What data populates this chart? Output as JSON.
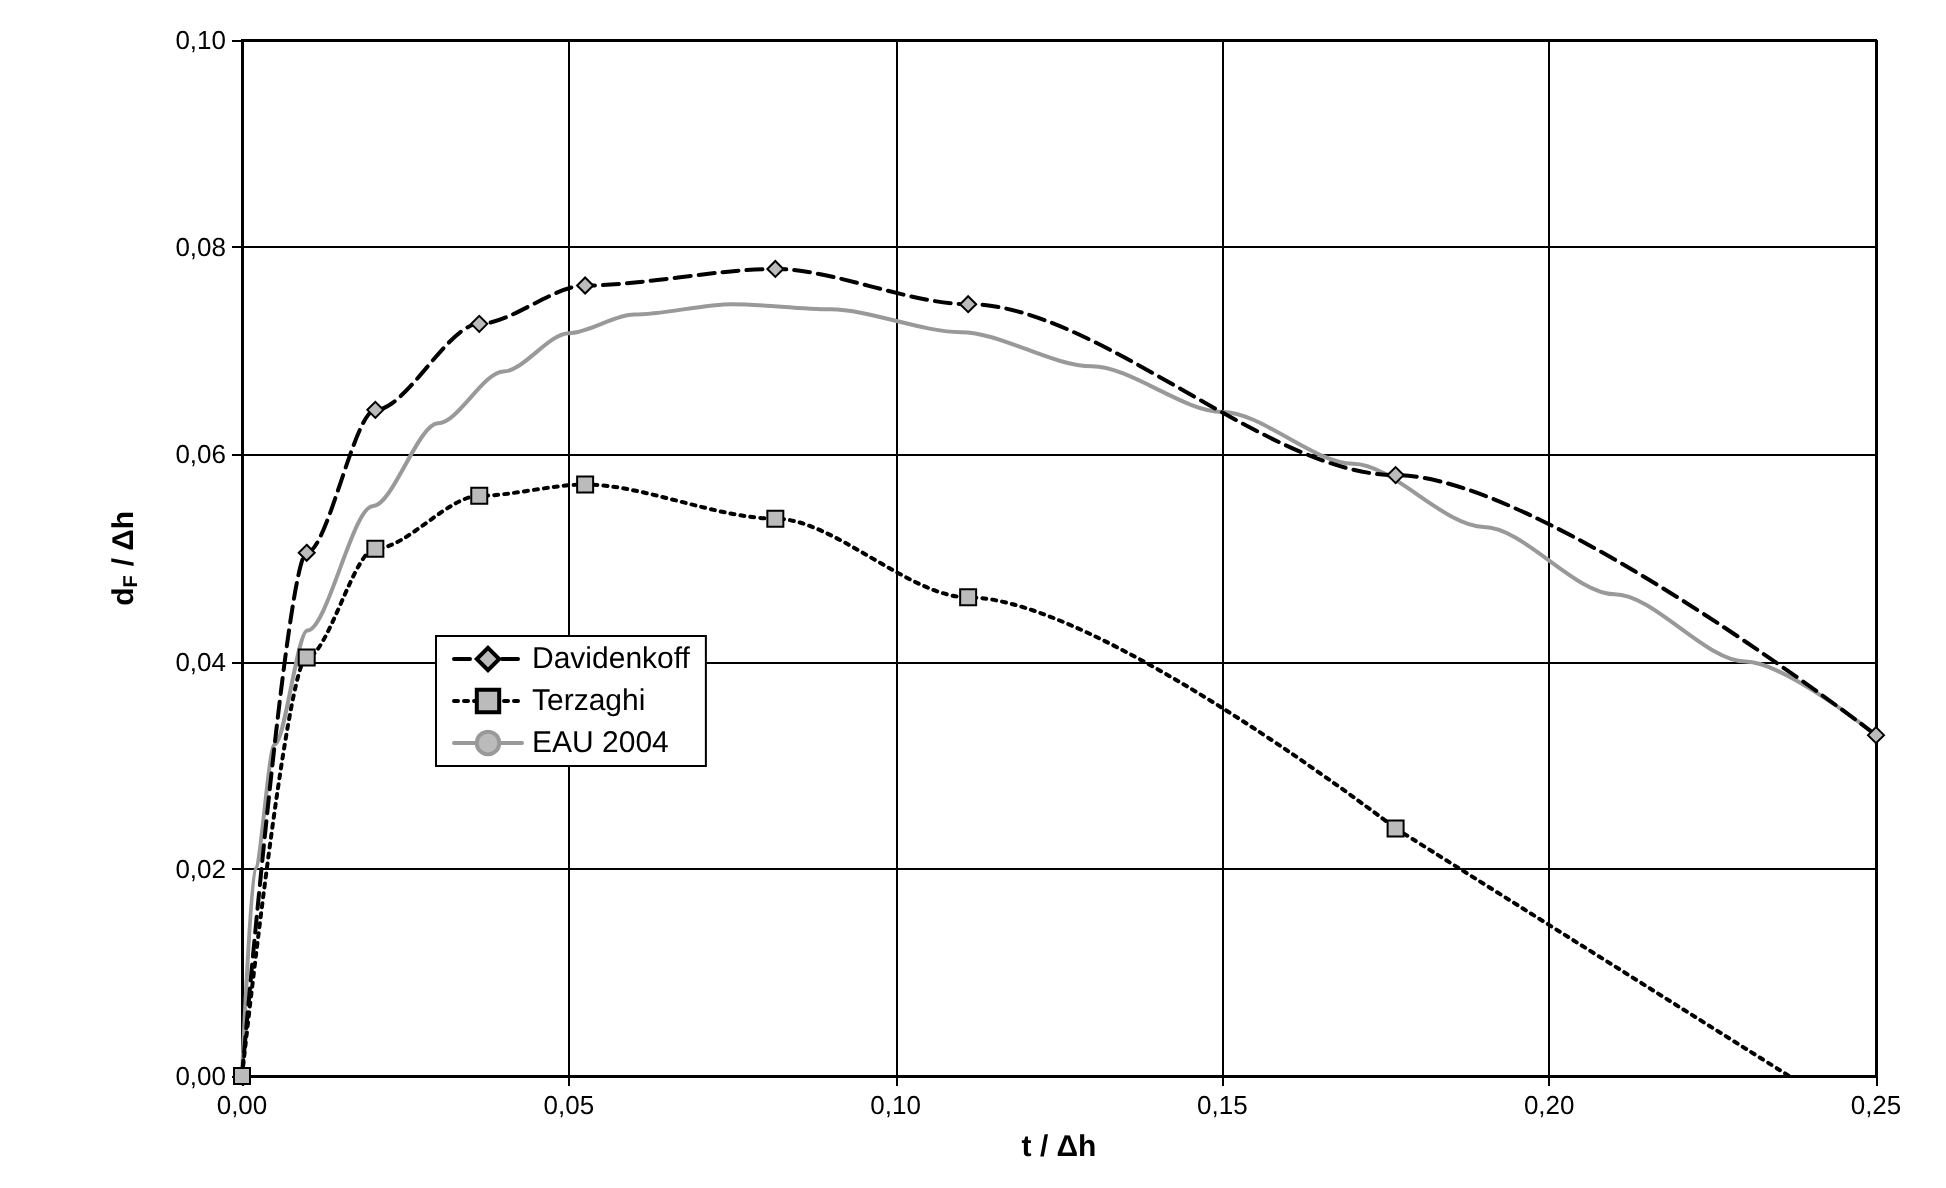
{
  "chart_data": {
    "type": "line",
    "xlabel": "t / Δh",
    "ylabel": "d$_{F}$ / Δh",
    "xlim": [
      0,
      0.25
    ],
    "ylim": [
      0,
      0.1
    ],
    "xticks": [
      {
        "value": 0,
        "label": "0,00"
      },
      {
        "value": 0.05,
        "label": "0,05"
      },
      {
        "value": 0.1,
        "label": "0,10"
      },
      {
        "value": 0.15,
        "label": "0,15"
      },
      {
        "value": 0.2,
        "label": "0,20"
      },
      {
        "value": 0.25,
        "label": "0,25"
      }
    ],
    "yticks": [
      {
        "value": 0,
        "label": "0,00"
      },
      {
        "value": 0.02,
        "label": "0,02"
      },
      {
        "value": 0.04,
        "label": "0,04"
      },
      {
        "value": 0.06,
        "label": "0,06"
      },
      {
        "value": 0.08,
        "label": "0,08"
      },
      {
        "value": 0.1,
        "label": "0,10"
      }
    ],
    "grid": true,
    "legend": "left",
    "series": [
      {
        "name": "Davidenkoff",
        "color": "#000000",
        "marker": "diamond",
        "line_style": "dashed",
        "x": [
          0,
          0.0099,
          0.0204,
          0.0363,
          0.0525,
          0.0816,
          0.1111,
          0.1765,
          0.25
        ],
        "values": [
          0,
          0.0505,
          0.0643,
          0.0726,
          0.0763,
          0.0779,
          0.0745,
          0.058,
          0.0329
        ]
      },
      {
        "name": "Terzaghi",
        "color": "#000000",
        "marker": "square",
        "line_style": "dotted",
        "x": [
          0,
          0.0099,
          0.0204,
          0.0363,
          0.0525,
          0.0816,
          0.1111,
          0.1765
        ],
        "values": [
          0,
          0.0404,
          0.0509,
          0.056,
          0.0571,
          0.0538,
          0.0462,
          0.0239
        ]
      },
      {
        "color": "#000000",
        "marker": "none",
        "line_style": "dotted",
        "x": [
          0.1765,
          0.2367
        ],
        "values": [
          0.0239,
          0
        ]
      },
      {
        "name": "EAU 2004",
        "color": "#999999",
        "marker": "none",
        "line_style": "solid",
        "x": [
          0,
          0.002,
          0.005,
          0.01,
          0.02,
          0.03,
          0.04,
          0.05,
          0.06,
          0.075,
          0.09,
          0.11,
          0.13,
          0.15,
          0.17,
          0.19,
          0.21,
          0.23,
          0.25
        ],
        "values": [
          0,
          0.02,
          0.032,
          0.043,
          0.055,
          0.063,
          0.068,
          0.0717,
          0.0735,
          0.0745,
          0.074,
          0.0718,
          0.0685,
          0.0641,
          0.0591,
          0.053,
          0.0465,
          0.04,
          0.0329
        ]
      }
    ]
  }
}
